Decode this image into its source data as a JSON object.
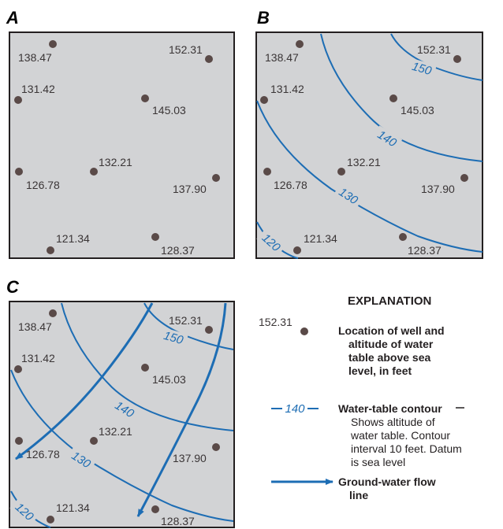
{
  "panels": [
    {
      "letter": "A"
    },
    {
      "letter": "B"
    },
    {
      "letter": "C"
    }
  ],
  "wells": [
    {
      "altitude": "138.47"
    },
    {
      "altitude": "152.31"
    },
    {
      "altitude": "131.42"
    },
    {
      "altitude": "145.03"
    },
    {
      "altitude": "132.21"
    },
    {
      "altitude": "126.78"
    },
    {
      "altitude": "137.90"
    },
    {
      "altitude": "121.34"
    },
    {
      "altitude": "128.37"
    }
  ],
  "contours": [
    {
      "value": "150"
    },
    {
      "value": "140"
    },
    {
      "value": "130"
    },
    {
      "value": "120"
    }
  ],
  "explanation": {
    "title": "EXPLANATION",
    "well_example_value": "152.31",
    "well_lines": [
      "Location of well and",
      "altitude of water",
      "table above sea",
      "level, in feet"
    ],
    "contour_example_value": "140",
    "contour_title": "Water-table contour",
    "contour_lines": [
      "Shows altitude of",
      "water table. Contour",
      "interval 10 feet. Datum",
      "is sea level"
    ],
    "flow_lines": [
      "Ground-water flow",
      "line"
    ]
  },
  "colors": {
    "panel_fill": "#d2d3d5",
    "contour": "#1d6db4",
    "well": "#5a4a48",
    "border": "#231f20"
  }
}
